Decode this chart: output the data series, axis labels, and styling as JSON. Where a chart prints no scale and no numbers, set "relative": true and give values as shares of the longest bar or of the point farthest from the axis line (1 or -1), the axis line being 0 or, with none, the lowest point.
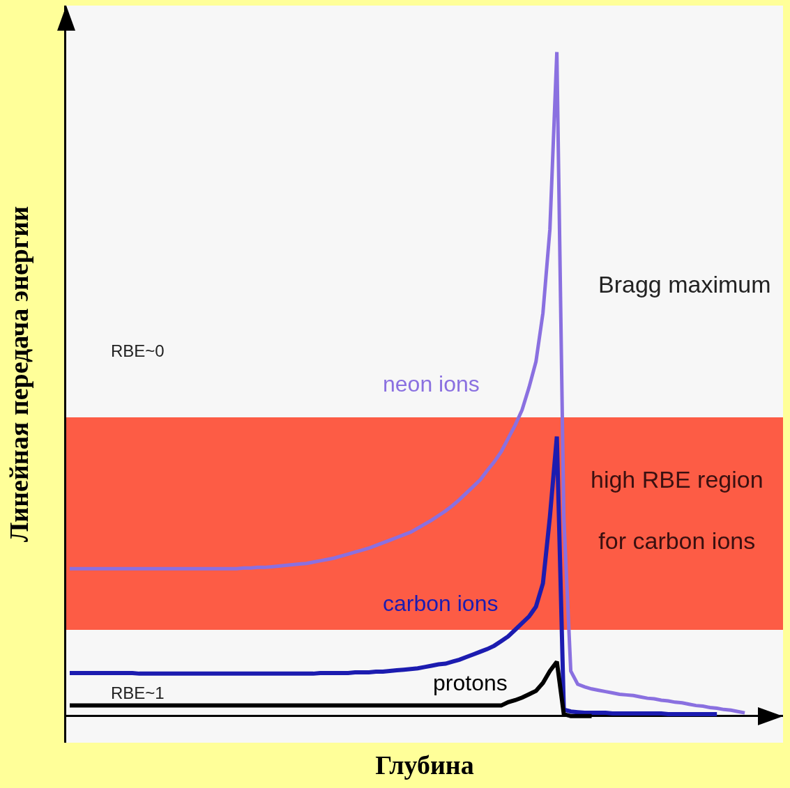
{
  "chart_data": {
    "type": "line",
    "relative": true,
    "xlabel": "Глубина",
    "ylabel": "Линейная передача энергии",
    "categories": [
      null,
      null,
      null,
      null,
      null,
      null,
      null,
      null,
      null,
      null,
      null,
      null,
      null,
      null,
      null,
      null,
      null,
      null,
      null,
      null,
      null,
      null,
      null,
      null,
      null,
      null,
      null,
      null,
      null,
      null,
      null,
      null,
      null,
      null,
      null,
      null,
      null,
      null,
      null,
      null,
      null,
      null,
      null,
      null,
      null,
      null,
      null,
      null,
      null,
      null,
      null,
      null,
      null,
      null,
      null,
      null,
      null,
      null,
      null,
      null,
      null,
      null,
      null,
      null,
      null,
      null,
      null,
      null,
      null,
      null,
      null,
      null,
      null,
      null,
      null,
      null,
      null,
      null,
      null,
      null,
      null,
      null,
      null,
      null,
      null,
      null,
      null,
      null,
      null,
      null,
      null,
      null,
      null,
      null,
      null,
      null,
      null,
      null,
      null,
      null,
      null
    ],
    "legend": false,
    "marker": "none",
    "line_style": "solid",
    "series": [
      {
        "name": "neon ions",
        "color": "#8a70e0",
        "values": [
          0.222,
          0.222,
          0.222,
          0.222,
          0.222,
          0.222,
          0.222,
          0.222,
          0.222,
          0.222,
          0.222,
          0.222,
          0.222,
          0.222,
          0.222,
          0.222,
          0.222,
          0.222,
          0.222,
          0.222,
          0.222,
          0.222,
          0.222,
          0.222,
          0.222,
          0.223,
          0.223,
          0.224,
          0.224,
          0.225,
          0.226,
          0.227,
          0.228,
          0.229,
          0.23,
          0.232,
          0.234,
          0.236,
          0.238,
          0.241,
          0.244,
          0.247,
          0.25,
          0.253,
          0.257,
          0.261,
          0.265,
          0.269,
          0.273,
          0.277,
          0.283,
          0.289,
          0.295,
          0.302,
          0.309,
          0.317,
          0.326,
          0.336,
          0.346,
          0.356,
          0.37,
          0.383,
          0.398,
          0.418,
          0.438,
          0.461,
          0.495,
          0.534,
          0.607,
          0.733,
          1,
          0.3,
          0.068,
          0.048,
          0.044,
          0.041,
          0.039,
          0.037,
          0.035,
          0.033,
          0.032,
          0.031,
          0.029,
          0.027,
          0.026,
          0.024,
          0.023,
          0.021,
          0.02,
          0.018,
          0.016,
          0.015,
          0.013,
          0.012,
          0.01,
          0.009,
          0.007,
          0.005,
          null,
          null,
          null
        ]
      },
      {
        "name": "carbon ions",
        "color": "#1c1cb0",
        "values": [
          0.065,
          0.065,
          0.065,
          0.065,
          0.065,
          0.065,
          0.065,
          0.065,
          0.065,
          0.065,
          0.064,
          0.064,
          0.064,
          0.064,
          0.064,
          0.064,
          0.064,
          0.064,
          0.064,
          0.064,
          0.064,
          0.064,
          0.064,
          0.064,
          0.064,
          0.064,
          0.064,
          0.064,
          0.064,
          0.064,
          0.064,
          0.064,
          0.064,
          0.064,
          0.064,
          0.064,
          0.065,
          0.065,
          0.065,
          0.065,
          0.065,
          0.066,
          0.066,
          0.066,
          0.067,
          0.067,
          0.068,
          0.069,
          0.07,
          0.071,
          0.072,
          0.074,
          0.076,
          0.078,
          0.079,
          0.082,
          0.085,
          0.089,
          0.093,
          0.097,
          0.101,
          0.106,
          0.113,
          0.12,
          0.13,
          0.14,
          0.15,
          0.165,
          0.2,
          0.3,
          0.421,
          0.01,
          0.007,
          0.006,
          0.005,
          0.005,
          0.005,
          0.005,
          0.004,
          0.004,
          0.004,
          0.004,
          0.004,
          0.004,
          0.004,
          0.004,
          0.003,
          0.003,
          0.003,
          0.003,
          0.003,
          0.003,
          0.003,
          0.003,
          null,
          null,
          null,
          null,
          null,
          null,
          null
        ]
      },
      {
        "name": "protons",
        "color": "#000000",
        "values": [
          0.016,
          0.016,
          0.016,
          0.016,
          0.016,
          0.016,
          0.016,
          0.016,
          0.016,
          0.016,
          0.016,
          0.016,
          0.016,
          0.016,
          0.016,
          0.016,
          0.016,
          0.016,
          0.016,
          0.016,
          0.016,
          0.016,
          0.016,
          0.016,
          0.016,
          0.016,
          0.016,
          0.016,
          0.016,
          0.016,
          0.016,
          0.016,
          0.016,
          0.016,
          0.016,
          0.016,
          0.016,
          0.016,
          0.016,
          0.016,
          0.016,
          0.016,
          0.016,
          0.016,
          0.016,
          0.016,
          0.016,
          0.016,
          0.016,
          0.016,
          0.016,
          0.016,
          0.016,
          0.016,
          0.016,
          0.016,
          0.016,
          0.016,
          0.016,
          0.016,
          0.016,
          0.016,
          0.016,
          0.021,
          0.024,
          0.028,
          0.033,
          0.038,
          0.05,
          0.068,
          0.082,
          0.003,
          0,
          0,
          0,
          0,
          null,
          null,
          null,
          null,
          null,
          null,
          null,
          null,
          null,
          null,
          null,
          null,
          null,
          null,
          null,
          null,
          null,
          null,
          null,
          null,
          null,
          null,
          null,
          null,
          null
        ]
      }
    ],
    "bands": [
      {
        "axis": "y",
        "from": 0.13,
        "to": 0.45,
        "label": "high RBE region\nfor carbon ions",
        "color": "#ff2000"
      }
    ],
    "annotations": [
      "Bragg maximum",
      "RBE~0",
      "RBE~1"
    ]
  }
}
